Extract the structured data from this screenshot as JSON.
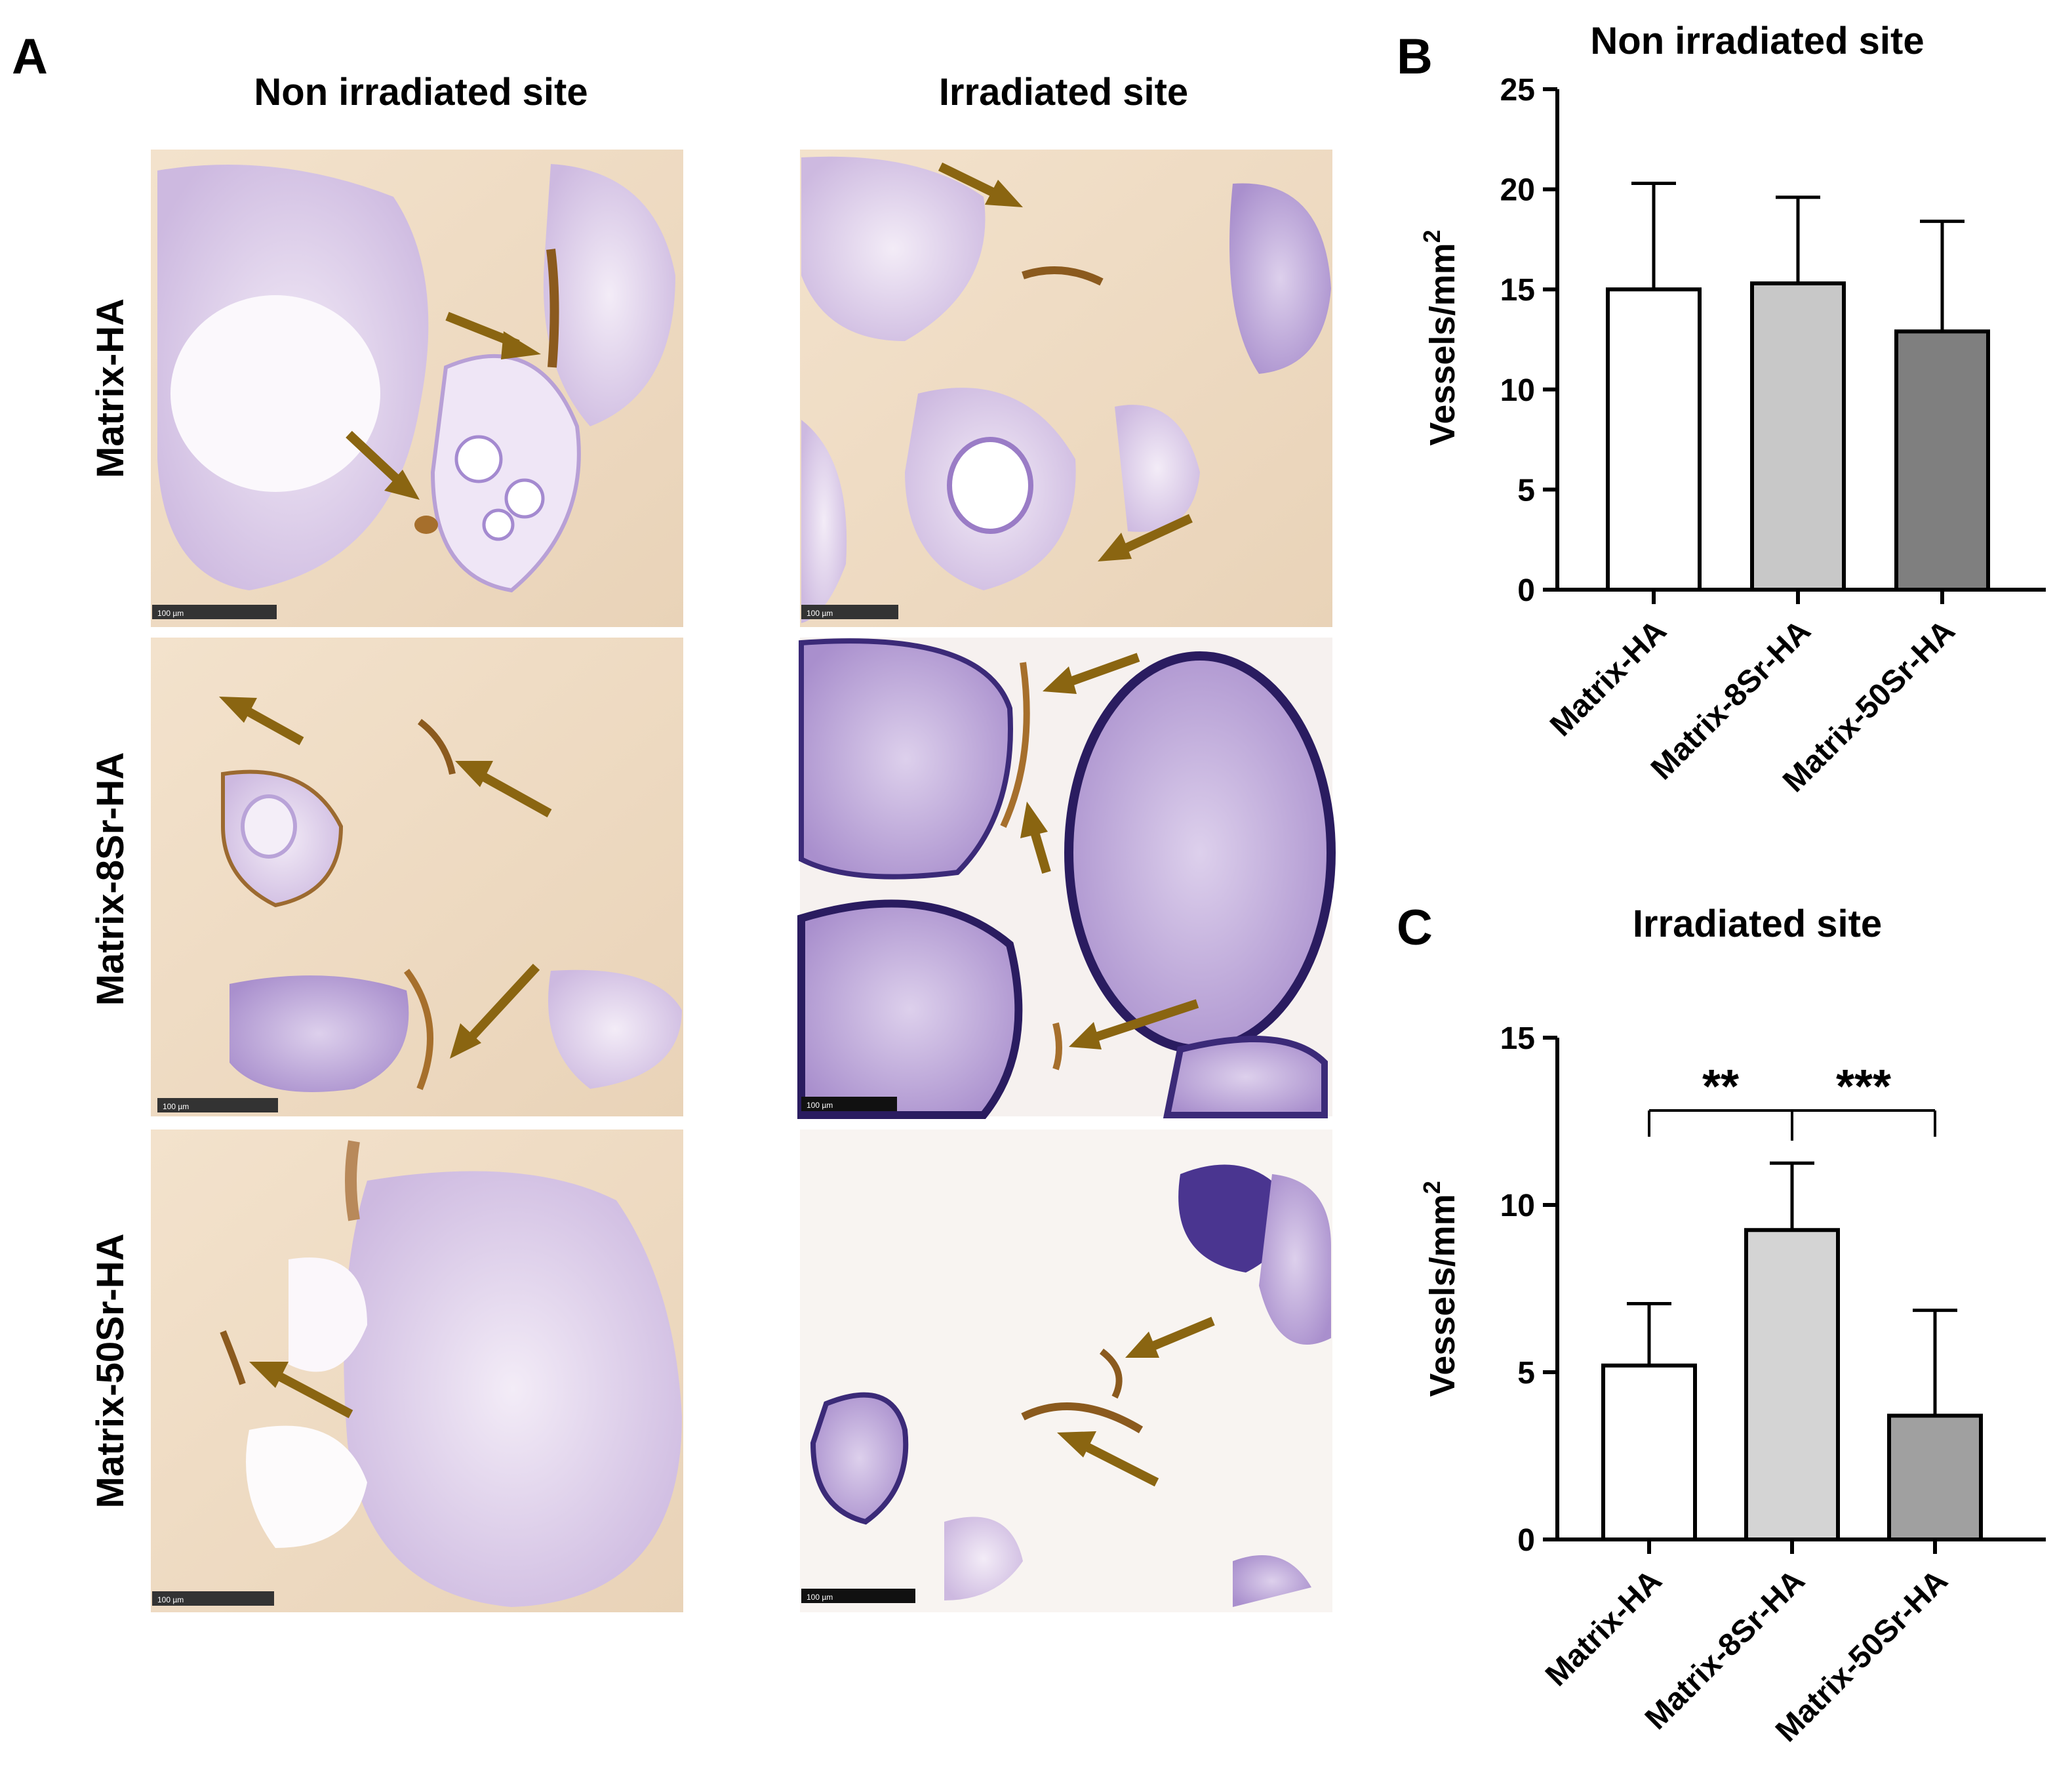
{
  "panel_a": {
    "letter": "A",
    "column_titles": [
      "Non irradiated site",
      "Irradiated site"
    ],
    "row_labels": [
      "Matrix-HA",
      "Matrix-8Sr-HA",
      "Matrix-50Sr-HA"
    ],
    "scale_bar": "100 µm",
    "arrow_color": "#8a6511"
  },
  "panel_b": {
    "letter": "B"
  },
  "panel_c": {
    "letter": "C"
  },
  "chart_data": [
    {
      "type": "bar",
      "title": "Non irradiated site",
      "xlabel": "",
      "ylabel": "Vessels/mm",
      "ylabel_superscript": "2",
      "categories": [
        "Matrix-HA",
        "Matrix-8Sr-HA",
        "Matrix-50Sr-HA"
      ],
      "values": [
        15.0,
        15.3,
        12.9
      ],
      "error_upper": [
        20.3,
        19.6,
        18.4
      ],
      "bar_colors": [
        "#ffffff",
        "#c8c8c8",
        "#7f7f7f"
      ],
      "ylim": [
        0,
        25
      ],
      "yticks": [
        0,
        5,
        10,
        15,
        20,
        25
      ],
      "grid": false,
      "significance": []
    },
    {
      "type": "bar",
      "title": "Irradiated site",
      "xlabel": "",
      "ylabel": "Vessels/mm",
      "ylabel_superscript": "2",
      "categories": [
        "Matrix-HA",
        "Matrix-8Sr-HA",
        "Matrix-50Sr-HA"
      ],
      "values": [
        5.2,
        9.25,
        3.7
      ],
      "error_upper": [
        7.05,
        11.25,
        6.85
      ],
      "bar_colors": [
        "#ffffff",
        "#d4d4d4",
        "#a0a0a0"
      ],
      "ylim": [
        0,
        15
      ],
      "yticks": [
        0,
        5,
        10,
        15
      ],
      "grid": false,
      "significance": [
        {
          "from": 0,
          "to": 1,
          "label": "**"
        },
        {
          "from": 1,
          "to": 2,
          "label": "***"
        }
      ]
    }
  ]
}
